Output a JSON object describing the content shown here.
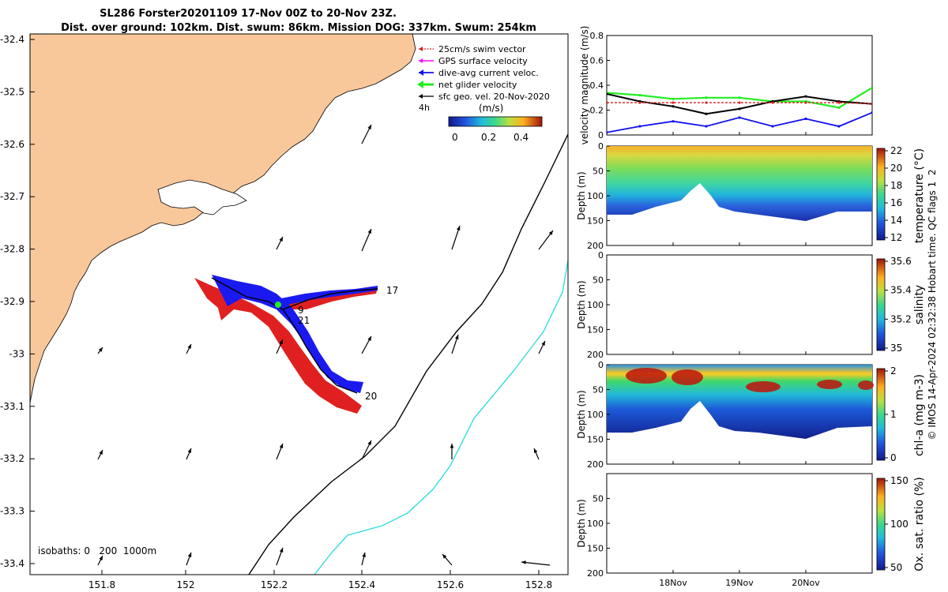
{
  "title": {
    "line1": "SL286 Forster20201109 17-Nov 00Z to 20-Nov 23Z.",
    "line2": "Dist. over ground: 102km. Dist. swum: 86km. Mission DOG: 337km. Swum: 254km"
  },
  "map": {
    "xticks": [
      "151.8",
      "152",
      "152.2",
      "152.4",
      "152.6",
      "152.8"
    ],
    "yticks": [
      "-32.4",
      "-32.5",
      "-32.6",
      "-32.7",
      "-32.8",
      "-32.9",
      "-33",
      "-33.1",
      "-33.2",
      "-33.3",
      "-33.4"
    ],
    "legend": [
      {
        "label": "25cm/s swim vector",
        "color": "#dd2020"
      },
      {
        "label": "GPS surface velocity",
        "color": "#ff00ff"
      },
      {
        "label": "dive-avg current veloc.",
        "color": "#1010ee"
      },
      {
        "label": "net glider velocity",
        "color": "#22ee22"
      },
      {
        "label": "sfc geo. vel. 20-Nov-2020",
        "color": "#000000"
      }
    ],
    "colorbar": {
      "unit": "(m/s)",
      "ticks": [
        "0",
        "0.2",
        "0.4"
      ]
    },
    "tag_4h": "4h",
    "day_labels": [
      "17",
      "9",
      "21",
      "20"
    ],
    "isobaths": "isobaths: 0   200  1000m",
    "land_color": "#f9c89a",
    "isobath_200_color": "#000000",
    "isobath_1000_color": "#33dddd"
  },
  "panels": {
    "velocity": {
      "ylabel": "velocity magnitude (m/s)",
      "yticks": [
        "0",
        "0.2",
        "0.4",
        "0.6",
        "0.8"
      ]
    },
    "temperature": {
      "ylabel": "Depth (m)",
      "yticks": [
        "0",
        "50",
        "100",
        "150",
        "200"
      ],
      "cbar_label": "temperature (°C)",
      "cbar_ticks": [
        "12",
        "14",
        "16",
        "18",
        "20",
        "22"
      ]
    },
    "salinity": {
      "ylabel": "Depth (m)",
      "yticks": [
        "0",
        "50",
        "100",
        "150",
        "200"
      ],
      "cbar_label": "salinity",
      "cbar_ticks": [
        "35",
        "35.2",
        "35.4",
        "35.6"
      ]
    },
    "chla": {
      "ylabel": "Depth (m)",
      "yticks": [
        "0",
        "50",
        "100",
        "150",
        "200"
      ],
      "cbar_label": "chl-a (mg m-3)",
      "cbar_ticks": [
        "0",
        "1",
        "2"
      ]
    },
    "oxygen": {
      "ylabel": "Depth (m)",
      "yticks": [
        "50",
        "100",
        "150",
        "200"
      ],
      "cbar_label": "Ox. sat. ratio (%)",
      "cbar_ticks": [
        "50",
        "100",
        "150"
      ]
    },
    "xticks": [
      "18Nov",
      "19Nov",
      "20Nov"
    ]
  },
  "side_note": "© IMOS 14-Apr-2024 02:32:38 Hobart time. QC flags 1  2",
  "chart_data": {
    "type": "line",
    "title": "SL286 Forster20201109 17-Nov 00Z to 20-Nov 23Z.",
    "ylabel": "velocity magnitude (m/s)",
    "ylim": [
      0,
      0.8
    ],
    "x": [
      "17-Nov 00Z",
      "17-Nov 12Z",
      "18-Nov 00Z",
      "18-Nov 12Z",
      "19-Nov 00Z",
      "19-Nov 12Z",
      "20-Nov 00Z",
      "20-Nov 12Z",
      "20-Nov 23Z"
    ],
    "xtick_labels": [
      "18Nov",
      "19Nov",
      "20Nov"
    ],
    "series": [
      {
        "name": "net glider velocity",
        "color": "#22ee22",
        "values": [
          0.34,
          0.32,
          0.29,
          0.3,
          0.3,
          0.27,
          0.27,
          0.22,
          0.38
        ]
      },
      {
        "name": "sfc geo. vel. 20-Nov-2020",
        "color": "#000000",
        "values": [
          0.33,
          0.27,
          0.23,
          0.17,
          0.21,
          0.27,
          0.31,
          0.27,
          0.25
        ]
      },
      {
        "name": "dive-avg current veloc.",
        "color": "#1010ee",
        "values": [
          0.02,
          0.07,
          0.11,
          0.07,
          0.14,
          0.07,
          0.13,
          0.07,
          0.18
        ]
      },
      {
        "name": "25cm/s swim vector",
        "color": "#dd2020",
        "values": [
          0.26,
          0.26,
          0.26,
          0.26,
          0.26,
          0.26,
          0.26,
          0.26,
          0.25
        ]
      }
    ]
  }
}
